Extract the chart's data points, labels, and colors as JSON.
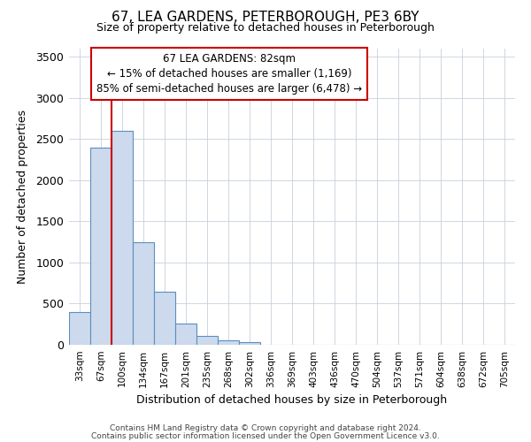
{
  "title": "67, LEA GARDENS, PETERBOROUGH, PE3 6BY",
  "subtitle": "Size of property relative to detached houses in Peterborough",
  "xlabel": "Distribution of detached houses by size in Peterborough",
  "ylabel": "Number of detached properties",
  "bar_labels": [
    "33sqm",
    "67sqm",
    "100sqm",
    "134sqm",
    "167sqm",
    "201sqm",
    "235sqm",
    "268sqm",
    "302sqm",
    "336sqm",
    "369sqm",
    "403sqm",
    "436sqm",
    "470sqm",
    "504sqm",
    "537sqm",
    "571sqm",
    "604sqm",
    "638sqm",
    "672sqm",
    "705sqm"
  ],
  "bar_heights": [
    400,
    2400,
    2600,
    1250,
    650,
    260,
    110,
    55,
    30,
    0,
    0,
    0,
    0,
    0,
    0,
    0,
    0,
    0,
    0,
    0,
    0
  ],
  "bar_color": "#cddaed",
  "bar_edge_color": "#5a8fbf",
  "ylim": [
    0,
    3600
  ],
  "yticks": [
    0,
    500,
    1000,
    1500,
    2000,
    2500,
    3000,
    3500
  ],
  "annotation_line1": "67 LEA GARDENS: 82sqm",
  "annotation_line2": "← 15% of detached houses are smaller (1,169)",
  "annotation_line3": "85% of semi-detached houses are larger (6,478) →",
  "footer_line1": "Contains HM Land Registry data © Crown copyright and database right 2024.",
  "footer_line2": "Contains public sector information licensed under the Open Government Licence v3.0.",
  "red_line_color": "#cc0000",
  "annotation_box_edge": "#cc0000",
  "background_color": "#ffffff",
  "grid_color": "#c8d0dc"
}
